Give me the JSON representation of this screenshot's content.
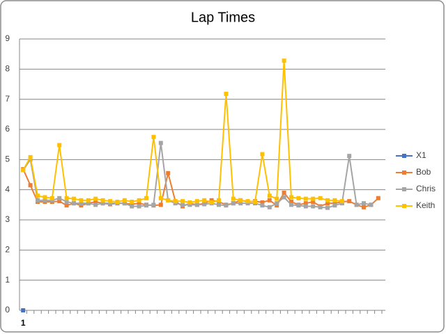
{
  "chart_data": {
    "type": "line",
    "title": "Lap Times",
    "categories": [
      "1",
      null,
      null,
      null,
      null,
      null,
      null,
      null,
      null,
      null,
      null,
      null,
      null,
      null,
      null,
      null,
      null,
      null,
      null,
      null,
      null,
      null,
      null,
      null,
      null,
      null,
      null,
      null,
      null,
      null,
      null,
      null,
      null,
      null,
      null,
      null,
      null,
      null,
      null,
      null,
      null,
      null,
      null,
      null,
      null,
      null,
      null,
      null,
      null,
      null
    ],
    "ylim": [
      0,
      9
    ],
    "yticks": [
      0,
      1,
      2,
      3,
      4,
      5,
      6,
      7,
      8,
      9
    ],
    "grid": true,
    "legend": "right",
    "series": [
      {
        "name": "X1",
        "color": "#4472c4",
        "values": [
          0,
          null,
          null,
          null,
          null,
          null,
          null,
          null,
          null,
          null,
          null,
          null,
          null,
          null,
          null,
          null,
          null,
          null,
          null,
          null,
          null,
          null,
          null,
          null,
          null,
          null,
          null,
          null,
          null,
          null,
          null,
          null,
          null,
          null,
          null,
          null,
          null,
          null,
          null,
          null,
          null,
          null,
          null,
          null,
          null,
          null,
          null,
          null,
          null,
          null
        ]
      },
      {
        "name": "Bob",
        "color": "#ed7d31",
        "values": [
          4.68,
          4.15,
          3.6,
          3.6,
          3.6,
          3.62,
          3.48,
          3.55,
          3.48,
          3.55,
          3.6,
          3.55,
          3.52,
          3.55,
          3.55,
          3.52,
          3.55,
          3.5,
          3.48,
          3.5,
          4.55,
          3.62,
          3.45,
          3.55,
          3.5,
          3.55,
          3.65,
          3.6,
          3.5,
          3.55,
          3.65,
          3.6,
          3.62,
          3.58,
          3.65,
          3.48,
          3.9,
          3.6,
          3.5,
          3.55,
          3.6,
          3.45,
          3.55,
          3.55,
          3.6,
          3.62,
          3.5,
          3.42,
          3.5,
          3.72
        ]
      },
      {
        "name": "Chris",
        "color": "#a5a5a5",
        "values": [
          4.65,
          5.0,
          3.65,
          3.65,
          3.65,
          3.72,
          3.6,
          3.55,
          3.55,
          3.55,
          3.5,
          3.55,
          3.55,
          3.55,
          3.55,
          3.45,
          3.45,
          3.48,
          3.5,
          5.55,
          3.65,
          3.55,
          3.5,
          3.5,
          3.5,
          3.52,
          3.55,
          3.5,
          3.48,
          3.55,
          3.55,
          3.55,
          3.55,
          3.48,
          3.42,
          3.55,
          3.75,
          3.5,
          3.48,
          3.45,
          3.45,
          3.42,
          3.4,
          3.48,
          3.55,
          5.12,
          3.5,
          3.55,
          3.5,
          null
        ]
      },
      {
        "name": "Keith",
        "color": "#ffc000",
        "values": [
          4.65,
          5.08,
          3.8,
          3.75,
          3.72,
          5.48,
          3.72,
          3.7,
          3.65,
          3.65,
          3.7,
          3.65,
          3.62,
          3.6,
          3.65,
          3.6,
          3.65,
          3.72,
          5.75,
          3.72,
          3.65,
          3.62,
          3.62,
          3.58,
          3.62,
          3.65,
          3.58,
          3.65,
          7.18,
          3.7,
          3.65,
          3.62,
          3.6,
          5.18,
          3.8,
          3.7,
          8.28,
          3.75,
          3.72,
          3.7,
          3.7,
          3.72,
          3.65,
          3.65,
          3.62,
          null,
          null,
          null,
          null,
          null
        ]
      }
    ]
  }
}
